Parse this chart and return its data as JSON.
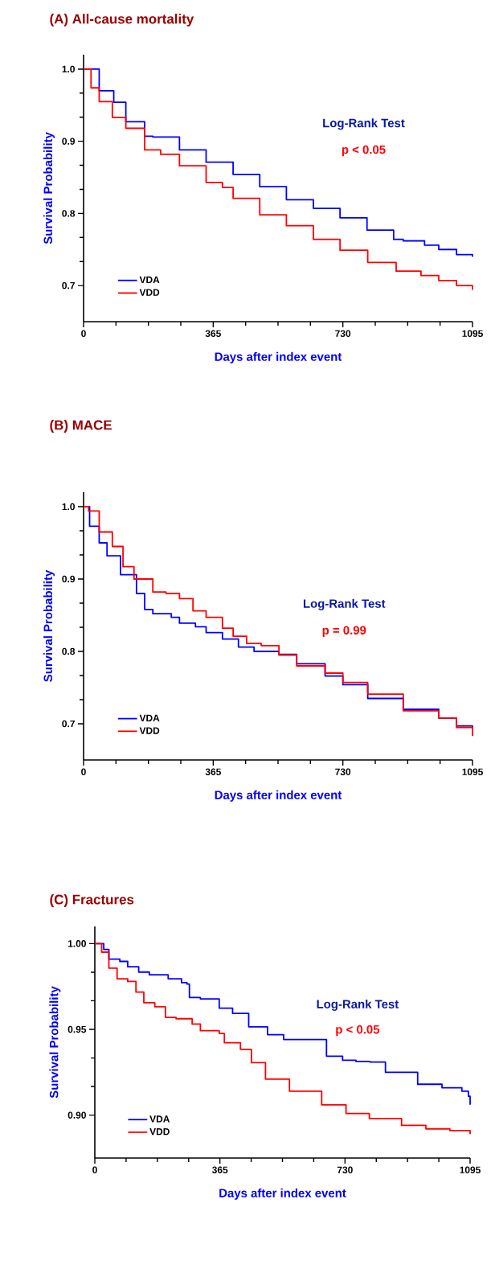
{
  "chart_data": [
    {
      "type": "step",
      "title": "(A) All-cause mortality",
      "xlabel": "Days after index event",
      "ylabel": "Survival Probability",
      "annotations": [
        "Log-Rank Test",
        "p < 0.05"
      ],
      "legend": "bottom left",
      "xlim": [
        0,
        1095
      ],
      "ylim": [
        0.65,
        1.02
      ],
      "xticks": [
        0,
        {
          "value": 91.25,
          "label": null
        },
        {
          "value": 182.5,
          "label": null
        },
        {
          "value": 273.75,
          "label": null
        },
        365,
        {
          "value": 456.25,
          "label": null
        },
        {
          "value": 547.5,
          "label": null
        },
        {
          "value": 638.75,
          "label": null
        },
        730,
        {
          "value": 821.25,
          "label": null
        },
        {
          "value": 912.5,
          "label": null
        },
        {
          "value": 1003.75,
          "label": null
        },
        1095
      ],
      "yticks": [
        0.7,
        {
          "value": 0.7333,
          "label": null
        },
        {
          "value": 0.7667,
          "label": null
        },
        0.8,
        {
          "value": 0.8333,
          "label": null
        },
        {
          "value": 0.8667,
          "label": null
        },
        0.9,
        {
          "value": 0.9333,
          "label": null
        },
        {
          "value": 0.9667,
          "label": null
        },
        {
          "value": 1,
          "label": "1.0"
        }
      ],
      "series": [
        {
          "name": "VDA",
          "color": "#0000ff",
          "x": [
            0,
            44,
            85,
            119,
            172,
            195,
            270,
            345,
            421,
            496,
            571,
            647,
            722,
            798,
            873,
            900,
            960,
            1000,
            1050,
            1095
          ],
          "values": [
            1.0,
            0.97,
            0.954,
            0.927,
            0.907,
            0.906,
            0.888,
            0.871,
            0.854,
            0.837,
            0.819,
            0.807,
            0.794,
            0.777,
            0.764,
            0.762,
            0.756,
            0.75,
            0.743,
            0.74
          ]
        },
        {
          "name": "VDD",
          "color": "#ff0000",
          "x": [
            0,
            21,
            44,
            81,
            119,
            172,
            217,
            270,
            345,
            391,
            421,
            496,
            571,
            647,
            722,
            800,
            880,
            950,
            1000,
            1050,
            1095
          ],
          "values": [
            1.0,
            0.974,
            0.955,
            0.933,
            0.918,
            0.888,
            0.882,
            0.866,
            0.843,
            0.836,
            0.821,
            0.798,
            0.783,
            0.764,
            0.749,
            0.732,
            0.72,
            0.714,
            0.707,
            0.7,
            0.694
          ]
        }
      ]
    },
    {
      "type": "step",
      "title": "(B) MACE",
      "xlabel": "Days after index event",
      "ylabel": "Survival Probability",
      "annotations": [
        "Log-Rank Test",
        "p = 0.99"
      ],
      "legend": "bottom left",
      "xlim": [
        0,
        1095
      ],
      "ylim": [
        0.65,
        1.02
      ],
      "xticks": [
        0,
        {
          "value": 91.25,
          "label": null
        },
        {
          "value": 182.5,
          "label": null
        },
        {
          "value": 273.75,
          "label": null
        },
        365,
        {
          "value": 456.25,
          "label": null
        },
        {
          "value": 547.5,
          "label": null
        },
        {
          "value": 638.75,
          "label": null
        },
        730,
        {
          "value": 821.25,
          "label": null
        },
        {
          "value": 912.5,
          "label": null
        },
        {
          "value": 1003.75,
          "label": null
        },
        1095
      ],
      "yticks": [
        0.7,
        {
          "value": 0.7333,
          "label": null
        },
        {
          "value": 0.7667,
          "label": null
        },
        0.8,
        {
          "value": 0.8333,
          "label": null
        },
        {
          "value": 0.8667,
          "label": null
        },
        0.9,
        {
          "value": 0.9333,
          "label": null
        },
        {
          "value": 0.9667,
          "label": null
        },
        {
          "value": 1,
          "label": "1.0"
        }
      ],
      "series": [
        {
          "name": "VDA",
          "color": "#0000ff",
          "x": [
            0,
            17,
            44,
            66,
            104,
            149,
            172,
            195,
            247,
            270,
            315,
            345,
            391,
            436,
            480,
            550,
            600,
            680,
            730,
            800,
            900,
            1000,
            1050,
            1095
          ],
          "values": [
            1.0,
            0.973,
            0.95,
            0.932,
            0.906,
            0.88,
            0.858,
            0.852,
            0.847,
            0.839,
            0.834,
            0.826,
            0.817,
            0.806,
            0.8,
            0.796,
            0.783,
            0.766,
            0.754,
            0.735,
            0.72,
            0.708,
            0.697,
            0.693
          ]
        },
        {
          "name": "VDD",
          "color": "#ff0000",
          "x": [
            0,
            14,
            44,
            81,
            111,
            142,
            195,
            232,
            270,
            308,
            345,
            391,
            421,
            459,
            500,
            550,
            600,
            680,
            730,
            800,
            900,
            1000,
            1050,
            1095
          ],
          "values": [
            1.0,
            0.994,
            0.965,
            0.945,
            0.917,
            0.9,
            0.882,
            0.88,
            0.873,
            0.856,
            0.847,
            0.832,
            0.821,
            0.811,
            0.808,
            0.795,
            0.78,
            0.77,
            0.757,
            0.741,
            0.718,
            0.708,
            0.695,
            0.683
          ]
        }
      ]
    },
    {
      "type": "step",
      "title": "(C) Fractures",
      "xlabel": "Days after index event",
      "ylabel": "Survival Probability",
      "annotations": [
        "Log-Rank Test",
        "p < 0.05"
      ],
      "legend": "bottom left",
      "xlim": [
        0,
        1095
      ],
      "ylim": [
        0.875,
        1.01
      ],
      "xticks": [
        0,
        {
          "value": 91.25,
          "label": null
        },
        {
          "value": 182.5,
          "label": null
        },
        {
          "value": 273.75,
          "label": null
        },
        365,
        {
          "value": 456.25,
          "label": null
        },
        {
          "value": 547.5,
          "label": null
        },
        {
          "value": 638.75,
          "label": null
        },
        730,
        {
          "value": 821.25,
          "label": null
        },
        {
          "value": 912.5,
          "label": null
        },
        {
          "value": 1003.75,
          "label": null
        },
        1095
      ],
      "yticks": [
        {
          "value": 0.9,
          "label": "0.90"
        },
        {
          "value": 0.9167,
          "label": null
        },
        {
          "value": 0.9333,
          "label": null
        },
        0.95,
        {
          "value": 0.9667,
          "label": null
        },
        {
          "value": 0.9833,
          "label": null
        },
        {
          "value": 1,
          "label": "1.00"
        }
      ],
      "series": [
        {
          "name": "VDA",
          "color": "#0000ff",
          "x": [
            0,
            26,
            41,
            73,
            96,
            128,
            159,
            214,
            253,
            269,
            276,
            308,
            363,
            402,
            449,
            504,
            551,
            676,
            723,
            762,
            803,
            848,
            942,
            1013,
            1071,
            1090,
            1095
          ],
          "values": [
            1.0,
            0.9966,
            0.991,
            0.9896,
            0.9865,
            0.9834,
            0.9818,
            0.9795,
            0.9772,
            0.9764,
            0.9686,
            0.9678,
            0.9624,
            0.9593,
            0.9515,
            0.9469,
            0.9441,
            0.9344,
            0.932,
            0.9313,
            0.931,
            0.925,
            0.918,
            0.916,
            0.914,
            0.911,
            0.906
          ]
        },
        {
          "name": "VDD",
          "color": "#ff0000",
          "x": [
            0,
            20,
            41,
            65,
            96,
            120,
            143,
            175,
            206,
            237,
            284,
            308,
            363,
            378,
            425,
            457,
            498,
            568,
            662,
            733,
            801,
            895,
            966,
            1036,
            1095
          ],
          "values": [
            1.0,
            0.995,
            0.9857,
            0.9795,
            0.9779,
            0.9717,
            0.9655,
            0.9632,
            0.957,
            0.9562,
            0.9531,
            0.9492,
            0.9476,
            0.9422,
            0.9383,
            0.9306,
            0.921,
            0.914,
            0.906,
            0.901,
            0.898,
            0.894,
            0.892,
            0.891,
            0.889
          ]
        }
      ]
    }
  ]
}
